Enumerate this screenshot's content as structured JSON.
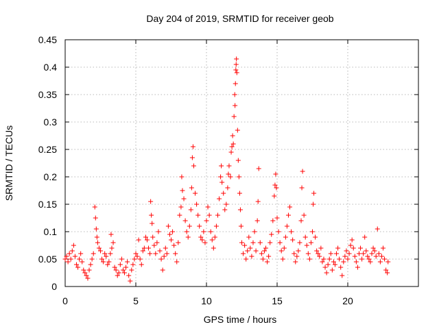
{
  "chart_data": {
    "type": "scatter",
    "title": "Day 204 of 2019, SRMTID for receiver geob",
    "xlabel": "GPS time / hours",
    "ylabel": "SRMTID / TECUs",
    "xlim": [
      0,
      25
    ],
    "ylim": [
      0,
      0.45
    ],
    "xticks": [
      0,
      5,
      10,
      15,
      20
    ],
    "xtick_labels": [
      "0",
      "5",
      "10",
      "15",
      "20"
    ],
    "yticks": [
      0,
      0.05,
      0.1,
      0.15,
      0.2,
      0.25,
      0.3,
      0.35,
      0.4,
      0.45
    ],
    "ytick_labels": [
      "0",
      "0.05",
      "0.1",
      "0.15",
      "0.2",
      "0.25",
      "0.3",
      "0.35",
      "0.4",
      "0.45"
    ],
    "grid": true,
    "marker": "+",
    "series": [
      {
        "name": "SRMTID",
        "color": "#ff0000",
        "points": [
          [
            0.0,
            0.05
          ],
          [
            0.1,
            0.055
          ],
          [
            0.2,
            0.045
          ],
          [
            0.3,
            0.06
          ],
          [
            0.4,
            0.05
          ],
          [
            0.5,
            0.065
          ],
          [
            0.6,
            0.075
          ],
          [
            0.7,
            0.055
          ],
          [
            0.8,
            0.04
          ],
          [
            0.9,
            0.035
          ],
          [
            1.0,
            0.05
          ],
          [
            1.1,
            0.06
          ],
          [
            1.2,
            0.045
          ],
          [
            1.3,
            0.03
          ],
          [
            1.4,
            0.025
          ],
          [
            1.5,
            0.02
          ],
          [
            1.6,
            0.015
          ],
          [
            1.7,
            0.03
          ],
          [
            1.8,
            0.04
          ],
          [
            1.9,
            0.05
          ],
          [
            2.0,
            0.06
          ],
          [
            2.1,
            0.145
          ],
          [
            2.15,
            0.125
          ],
          [
            2.2,
            0.105
          ],
          [
            2.25,
            0.09
          ],
          [
            2.3,
            0.08
          ],
          [
            2.4,
            0.07
          ],
          [
            2.5,
            0.065
          ],
          [
            2.6,
            0.05
          ],
          [
            2.7,
            0.045
          ],
          [
            2.8,
            0.06
          ],
          [
            2.9,
            0.055
          ],
          [
            3.0,
            0.04
          ],
          [
            3.1,
            0.045
          ],
          [
            3.2,
            0.06
          ],
          [
            3.25,
            0.095
          ],
          [
            3.3,
            0.07
          ],
          [
            3.4,
            0.08
          ],
          [
            3.5,
            0.035
          ],
          [
            3.6,
            0.03
          ],
          [
            3.7,
            0.02
          ],
          [
            3.8,
            0.025
          ],
          [
            3.9,
            0.04
          ],
          [
            4.0,
            0.05
          ],
          [
            4.1,
            0.03
          ],
          [
            4.2,
            0.025
          ],
          [
            4.3,
            0.035
          ],
          [
            4.4,
            0.045
          ],
          [
            4.5,
            0.02
          ],
          [
            4.6,
            0.01
          ],
          [
            4.7,
            0.03
          ],
          [
            4.8,
            0.04
          ],
          [
            4.9,
            0.05
          ],
          [
            5.0,
            0.06
          ],
          [
            5.1,
            0.055
          ],
          [
            5.2,
            0.085
          ],
          [
            5.3,
            0.05
          ],
          [
            5.4,
            0.04
          ],
          [
            5.5,
            0.065
          ],
          [
            5.6,
            0.07
          ],
          [
            5.7,
            0.09
          ],
          [
            5.8,
            0.085
          ],
          [
            5.9,
            0.07
          ],
          [
            6.0,
            0.06
          ],
          [
            6.05,
            0.155
          ],
          [
            6.1,
            0.13
          ],
          [
            6.15,
            0.115
          ],
          [
            6.2,
            0.09
          ],
          [
            6.3,
            0.075
          ],
          [
            6.4,
            0.06
          ],
          [
            6.5,
            0.08
          ],
          [
            6.6,
            0.1
          ],
          [
            6.7,
            0.065
          ],
          [
            6.8,
            0.05
          ],
          [
            6.9,
            0.03
          ],
          [
            7.0,
            0.055
          ],
          [
            7.1,
            0.07
          ],
          [
            7.2,
            0.06
          ],
          [
            7.3,
            0.11
          ],
          [
            7.4,
            0.095
          ],
          [
            7.5,
            0.085
          ],
          [
            7.6,
            0.1
          ],
          [
            7.7,
            0.075
          ],
          [
            7.8,
            0.06
          ],
          [
            7.9,
            0.045
          ],
          [
            8.0,
            0.08
          ],
          [
            8.1,
            0.13
          ],
          [
            8.2,
            0.145
          ],
          [
            8.25,
            0.2
          ],
          [
            8.3,
            0.175
          ],
          [
            8.4,
            0.16
          ],
          [
            8.5,
            0.12
          ],
          [
            8.6,
            0.1
          ],
          [
            8.7,
            0.09
          ],
          [
            8.8,
            0.11
          ],
          [
            8.9,
            0.14
          ],
          [
            8.95,
            0.18
          ],
          [
            9.0,
            0.235
          ],
          [
            9.05,
            0.255
          ],
          [
            9.1,
            0.22
          ],
          [
            9.2,
            0.17
          ],
          [
            9.3,
            0.15
          ],
          [
            9.4,
            0.13
          ],
          [
            9.5,
            0.11
          ],
          [
            9.6,
            0.09
          ],
          [
            9.7,
            0.085
          ],
          [
            9.8,
            0.1
          ],
          [
            9.9,
            0.08
          ],
          [
            10.0,
            0.12
          ],
          [
            10.1,
            0.145
          ],
          [
            10.2,
            0.13
          ],
          [
            10.3,
            0.1
          ],
          [
            10.4,
            0.085
          ],
          [
            10.5,
            0.07
          ],
          [
            10.6,
            0.09
          ],
          [
            10.7,
            0.11
          ],
          [
            10.8,
            0.13
          ],
          [
            10.9,
            0.16
          ],
          [
            11.0,
            0.2
          ],
          [
            11.05,
            0.22
          ],
          [
            11.1,
            0.19
          ],
          [
            11.2,
            0.17
          ],
          [
            11.3,
            0.14
          ],
          [
            11.4,
            0.15
          ],
          [
            11.5,
            0.18
          ],
          [
            11.55,
            0.205
          ],
          [
            11.6,
            0.22
          ],
          [
            11.7,
            0.2
          ],
          [
            11.75,
            0.245
          ],
          [
            11.8,
            0.255
          ],
          [
            11.85,
            0.275
          ],
          [
            11.9,
            0.26
          ],
          [
            11.95,
            0.31
          ],
          [
            12.0,
            0.35
          ],
          [
            12.02,
            0.33
          ],
          [
            12.05,
            0.37
          ],
          [
            12.08,
            0.395
          ],
          [
            12.1,
            0.405
          ],
          [
            12.12,
            0.415
          ],
          [
            12.15,
            0.39
          ],
          [
            12.2,
            0.285
          ],
          [
            12.25,
            0.23
          ],
          [
            12.3,
            0.2
          ],
          [
            12.35,
            0.17
          ],
          [
            12.4,
            0.14
          ],
          [
            12.45,
            0.11
          ],
          [
            12.5,
            0.08
          ],
          [
            12.6,
            0.06
          ],
          [
            12.7,
            0.075
          ],
          [
            12.8,
            0.05
          ],
          [
            12.9,
            0.065
          ],
          [
            13.0,
            0.09
          ],
          [
            13.1,
            0.07
          ],
          [
            13.2,
            0.055
          ],
          [
            13.3,
            0.08
          ],
          [
            13.4,
            0.1
          ],
          [
            13.5,
            0.065
          ],
          [
            13.6,
            0.12
          ],
          [
            13.65,
            0.155
          ],
          [
            13.7,
            0.215
          ],
          [
            13.8,
            0.08
          ],
          [
            13.9,
            0.06
          ],
          [
            14.0,
            0.05
          ],
          [
            14.1,
            0.065
          ],
          [
            14.2,
            0.07
          ],
          [
            14.3,
            0.045
          ],
          [
            14.4,
            0.055
          ],
          [
            14.5,
            0.08
          ],
          [
            14.6,
            0.095
          ],
          [
            14.7,
            0.12
          ],
          [
            14.8,
            0.165
          ],
          [
            14.85,
            0.185
          ],
          [
            14.9,
            0.205
          ],
          [
            14.95,
            0.18
          ],
          [
            15.0,
            0.125
          ],
          [
            15.1,
            0.1
          ],
          [
            15.2,
            0.08
          ],
          [
            15.3,
            0.065
          ],
          [
            15.4,
            0.05
          ],
          [
            15.5,
            0.07
          ],
          [
            15.6,
            0.09
          ],
          [
            15.7,
            0.11
          ],
          [
            15.8,
            0.13
          ],
          [
            15.9,
            0.145
          ],
          [
            16.0,
            0.1
          ],
          [
            16.1,
            0.085
          ],
          [
            16.2,
            0.06
          ],
          [
            16.3,
            0.045
          ],
          [
            16.4,
            0.055
          ],
          [
            16.5,
            0.065
          ],
          [
            16.6,
            0.08
          ],
          [
            16.7,
            0.12
          ],
          [
            16.75,
            0.18
          ],
          [
            16.8,
            0.21
          ],
          [
            16.9,
            0.13
          ],
          [
            17.0,
            0.09
          ],
          [
            17.1,
            0.075
          ],
          [
            17.2,
            0.06
          ],
          [
            17.3,
            0.05
          ],
          [
            17.4,
            0.08
          ],
          [
            17.5,
            0.1
          ],
          [
            17.55,
            0.15
          ],
          [
            17.6,
            0.17
          ],
          [
            17.7,
            0.09
          ],
          [
            17.8,
            0.065
          ],
          [
            17.9,
            0.06
          ],
          [
            18.0,
            0.055
          ],
          [
            18.1,
            0.07
          ],
          [
            18.2,
            0.045
          ],
          [
            18.3,
            0.05
          ],
          [
            18.4,
            0.035
          ],
          [
            18.5,
            0.025
          ],
          [
            18.6,
            0.04
          ],
          [
            18.7,
            0.05
          ],
          [
            18.8,
            0.06
          ],
          [
            18.9,
            0.03
          ],
          [
            19.0,
            0.045
          ],
          [
            19.1,
            0.04
          ],
          [
            19.2,
            0.06
          ],
          [
            19.3,
            0.07
          ],
          [
            19.4,
            0.05
          ],
          [
            19.5,
            0.035
          ],
          [
            19.6,
            0.02
          ],
          [
            19.7,
            0.045
          ],
          [
            19.8,
            0.055
          ],
          [
            19.9,
            0.065
          ],
          [
            20.0,
            0.05
          ],
          [
            20.1,
            0.06
          ],
          [
            20.2,
            0.075
          ],
          [
            20.3,
            0.085
          ],
          [
            20.4,
            0.07
          ],
          [
            20.5,
            0.055
          ],
          [
            20.6,
            0.045
          ],
          [
            20.7,
            0.035
          ],
          [
            20.8,
            0.06
          ],
          [
            20.9,
            0.07
          ],
          [
            21.0,
            0.05
          ],
          [
            21.1,
            0.06
          ],
          [
            21.2,
            0.09
          ],
          [
            21.3,
            0.065
          ],
          [
            21.4,
            0.055
          ],
          [
            21.5,
            0.05
          ],
          [
            21.6,
            0.045
          ],
          [
            21.7,
            0.06
          ],
          [
            21.8,
            0.07
          ],
          [
            21.9,
            0.065
          ],
          [
            22.0,
            0.055
          ],
          [
            22.1,
            0.105
          ],
          [
            22.2,
            0.06
          ],
          [
            22.3,
            0.045
          ],
          [
            22.4,
            0.055
          ],
          [
            22.5,
            0.07
          ],
          [
            22.6,
            0.05
          ],
          [
            22.7,
            0.03
          ],
          [
            22.8,
            0.025
          ],
          [
            22.85,
            0.045
          ]
        ]
      }
    ]
  }
}
